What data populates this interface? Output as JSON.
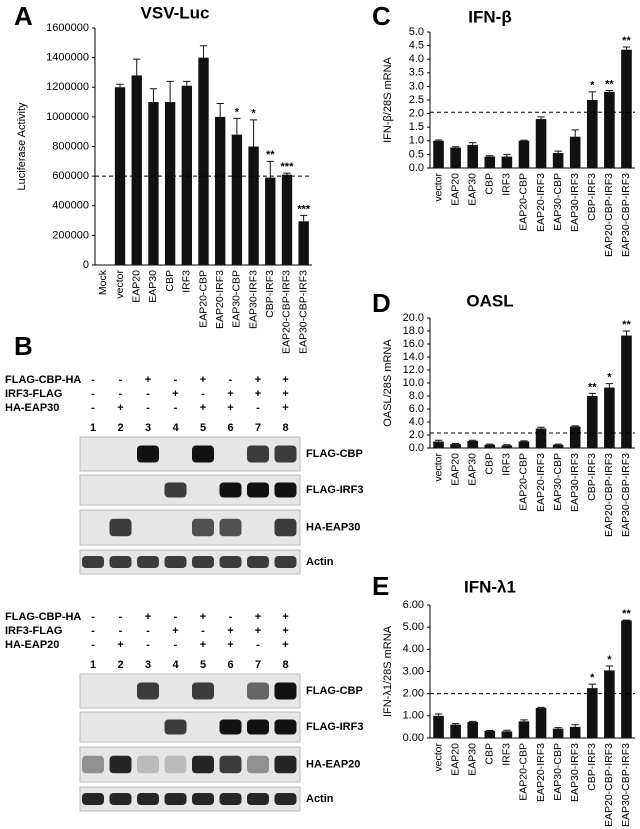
{
  "chart_data": [
    {
      "type": "bar",
      "panel": "A",
      "title": "VSV-Luc",
      "ylabel": "Luciferase Activity",
      "categories": [
        "Mock",
        "vector",
        "EAP20",
        "EAP30",
        "CBP",
        "IRF3",
        "EAP20-CBP",
        "EAP20-IRF3",
        "EAP30-CBP",
        "EAP30-IRF3",
        "CBP-IRF3",
        "EAP20-CBP-IRF3",
        "EAP30-CBP-IRF3"
      ],
      "values": [
        0,
        1200000,
        1280000,
        1100000,
        1100000,
        1210000,
        1400000,
        1000000,
        880000,
        800000,
        590000,
        610000,
        295000
      ],
      "errors": [
        0,
        20000,
        110000,
        90000,
        140000,
        30000,
        80000,
        90000,
        110000,
        180000,
        110000,
        10000,
        40000
      ],
      "significance": [
        null,
        null,
        null,
        null,
        null,
        null,
        null,
        null,
        "*",
        "*",
        "**",
        "***",
        "***"
      ],
      "ref_line": 600000,
      "color": "#111111",
      "ylim": [
        0,
        1600000
      ],
      "yticks": [
        0,
        200000,
        400000,
        600000,
        800000,
        1000000,
        1200000,
        1400000,
        1600000
      ],
      "grid": false
    },
    {
      "type": "bar",
      "panel": "C",
      "title": "IFN-β",
      "ylabel": "IFN-β/28S mRNA",
      "categories": [
        "vector",
        "EAP20",
        "EAP30",
        "CBP",
        "IRF3",
        "EAP20-CBP",
        "EAP20-IRF3",
        "EAP30-CBP",
        "EAP30-IRF3",
        "CBP-IRF3",
        "EAP20-CBP-IRF3",
        "EAP30-CBP-IRF3"
      ],
      "values": [
        1.0,
        0.75,
        0.85,
        0.42,
        0.42,
        1.0,
        1.8,
        0.55,
        1.15,
        2.5,
        2.8,
        4.35
      ],
      "errors": [
        0.03,
        0.03,
        0.08,
        0.03,
        0.08,
        0.02,
        0.08,
        0.07,
        0.25,
        0.3,
        0.05,
        0.1
      ],
      "significance": [
        null,
        null,
        null,
        null,
        null,
        null,
        null,
        null,
        null,
        "*",
        "**",
        "**"
      ],
      "ref_line": 2.05,
      "color": "#111111",
      "ylim": [
        0,
        5
      ],
      "yticks": [
        {
          "value": 0,
          "label": "0.0"
        },
        0.5,
        {
          "value": 1,
          "label": "1.0"
        },
        1.5,
        {
          "value": 2,
          "label": "2.0"
        },
        2.5,
        {
          "value": 3,
          "label": "3.0"
        },
        3.5,
        {
          "value": 4,
          "label": "4.0"
        },
        4.5,
        {
          "value": 5,
          "label": "5.0"
        }
      ],
      "grid": false
    },
    {
      "type": "bar",
      "panel": "D",
      "title": "OASL",
      "ylabel": "OASL/28S mRNA",
      "categories": [
        "vector",
        "EAP20",
        "EAP30",
        "CBP",
        "IRF3",
        "EAP20-CBP",
        "EAP20-IRF3",
        "EAP30-CBP",
        "EAP30-IRF3",
        "CBP-IRF3",
        "EAP20-CBP-IRF3",
        "EAP30-CBP-IRF3"
      ],
      "values": [
        1.0,
        0.6,
        1.1,
        0.5,
        0.4,
        1.0,
        3.0,
        0.5,
        3.3,
        8.0,
        9.3,
        17.3
      ],
      "errors": [
        0.2,
        0.1,
        0.1,
        0.1,
        0.1,
        0.1,
        0.2,
        0.1,
        0.1,
        0.4,
        0.6,
        0.7
      ],
      "significance": [
        null,
        null,
        null,
        null,
        null,
        null,
        null,
        null,
        null,
        "**",
        "*",
        "**"
      ],
      "ref_line": 2.3,
      "color": "#111111",
      "ylim": [
        0,
        20
      ],
      "yticks": [
        {
          "value": 0,
          "label": "0.0"
        },
        {
          "value": 2,
          "label": "2.0"
        },
        {
          "value": 4,
          "label": "4.0"
        },
        {
          "value": 6,
          "label": "6.0"
        },
        {
          "value": 8,
          "label": "8.0"
        },
        {
          "value": 10,
          "label": "10.0"
        },
        {
          "value": 12,
          "label": "12.0"
        },
        {
          "value": 14,
          "label": "14.0"
        },
        {
          "value": 16,
          "label": "16.0"
        },
        {
          "value": 18,
          "label": "18.0"
        },
        {
          "value": 20,
          "label": "20.0"
        }
      ],
      "grid": false
    },
    {
      "type": "bar",
      "panel": "E",
      "title": "IFN-λ1",
      "ylabel": "IFN-λ1/28S mRNA",
      "categories": [
        "vector",
        "EAP20",
        "EAP30",
        "CBP",
        "IRF3",
        "EAP20-CBP",
        "EAP20-IRF3",
        "EAP30-CBP",
        "EAP30-IRF3",
        "CBP-IRF3",
        "EAP20-CBP-IRF3",
        "EAP30-CBP-IRF3"
      ],
      "values": [
        1.0,
        0.6,
        0.72,
        0.32,
        0.3,
        0.75,
        1.35,
        0.42,
        0.5,
        2.25,
        3.05,
        5.3
      ],
      "errors": [
        0.08,
        0.05,
        0.03,
        0.02,
        0.05,
        0.07,
        0.03,
        0.05,
        0.1,
        0.18,
        0.2,
        0.02
      ],
      "significance": [
        null,
        null,
        null,
        null,
        null,
        null,
        null,
        null,
        null,
        "*",
        "*",
        "**"
      ],
      "ref_line": 2.0,
      "color": "#111111",
      "ylim": [
        0,
        6
      ],
      "yticks": [
        {
          "value": 0,
          "label": "0.00"
        },
        {
          "value": 1,
          "label": "1.00"
        },
        {
          "value": 2,
          "label": "2.00"
        },
        {
          "value": 3,
          "label": "3.00"
        },
        {
          "value": 4,
          "label": "4.00"
        },
        {
          "value": 5,
          "label": "5.00"
        },
        {
          "value": 6,
          "label": "6.00"
        }
      ],
      "grid": false
    }
  ],
  "blot_panel": {
    "panel": "B",
    "sets": [
      {
        "treatments": [
          {
            "name": "FLAG-CBP-HA",
            "signs": [
              "-",
              "-",
              "+",
              "-",
              "+",
              "-",
              "+",
              "+"
            ]
          },
          {
            "name": "IRF3-FLAG",
            "signs": [
              "-",
              "-",
              "-",
              "+",
              "-",
              "+",
              "+",
              "+"
            ]
          },
          {
            "name": "HA-EAP30",
            "signs": [
              "-",
              "+",
              "-",
              "-",
              "+",
              "+",
              "-",
              "+"
            ]
          }
        ],
        "lanes": [
          1,
          2,
          3,
          4,
          5,
          6,
          7,
          8
        ],
        "band_labels": [
          "FLAG-CBP",
          "FLAG-IRF3",
          "HA-EAP30",
          "Actin"
        ]
      },
      {
        "treatments": [
          {
            "name": "FLAG-CBP-HA",
            "signs": [
              "-",
              "-",
              "+",
              "-",
              "+",
              "-",
              "+",
              "+"
            ]
          },
          {
            "name": "IRF3-FLAG",
            "signs": [
              "-",
              "-",
              "-",
              "+",
              "-",
              "+",
              "+",
              "+"
            ]
          },
          {
            "name": "HA-EAP20",
            "signs": [
              "-",
              "+",
              "-",
              "-",
              "+",
              "+",
              "-",
              "+"
            ]
          }
        ],
        "lanes": [
          1,
          2,
          3,
          4,
          5,
          6,
          7,
          8
        ],
        "band_labels": [
          "FLAG-CBP",
          "FLAG-IRF3",
          "HA-EAP20",
          "Actin"
        ]
      }
    ]
  }
}
